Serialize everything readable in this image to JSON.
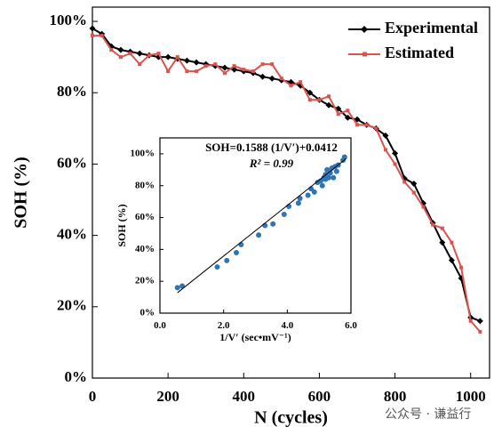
{
  "chart_data": [
    {
      "type": "line",
      "x_label": "N (cycles)",
      "y_label": "SOH (%)",
      "x": [
        0,
        25,
        50,
        75,
        100,
        125,
        150,
        175,
        200,
        225,
        250,
        275,
        300,
        325,
        350,
        375,
        400,
        425,
        450,
        475,
        500,
        525,
        550,
        575,
        600,
        625,
        650,
        675,
        700,
        725,
        750,
        775,
        800,
        825,
        850,
        875,
        900,
        925,
        950,
        975,
        1000,
        1025
      ],
      "series": [
        {
          "name": "Experimental",
          "color": "#000000",
          "marker": "diamond",
          "values": [
            98,
            96.5,
            93,
            92,
            91.5,
            91,
            90.5,
            90,
            90,
            89.5,
            89,
            88.5,
            88,
            87.5,
            87,
            86.5,
            86,
            85.5,
            84.5,
            84,
            83.5,
            83,
            82,
            80,
            78,
            76.5,
            75.5,
            73,
            72.5,
            71,
            70,
            68,
            63,
            56,
            54.5,
            49,
            43.5,
            38,
            33,
            28,
            17,
            16
          ]
        },
        {
          "name": "Estimated",
          "color": "#d9534f",
          "marker": "square",
          "values": [
            96,
            96,
            92,
            90,
            91,
            88,
            90.5,
            91,
            86,
            90,
            86,
            86,
            87.5,
            88,
            85.5,
            87.5,
            86.5,
            86,
            88,
            88,
            84,
            82,
            83,
            78,
            78,
            79,
            74,
            75,
            71,
            71,
            70,
            64,
            60,
            55,
            52,
            48,
            43,
            42,
            38,
            31,
            16,
            13
          ]
        }
      ],
      "xlim": [
        0,
        1050
      ],
      "xticks": [
        0,
        200,
        400,
        600,
        800,
        1000
      ],
      "ylim": [
        0,
        104
      ],
      "yticks": [
        {
          "value": 0,
          "label": "0%"
        },
        {
          "value": 20,
          "label": "20%"
        },
        {
          "value": 40,
          "label": "40%"
        },
        {
          "value": 60,
          "label": "60%"
        },
        {
          "value": 80,
          "label": "80%"
        },
        {
          "value": 100,
          "label": "100%"
        }
      ],
      "legend": "upper right",
      "watermark": "公众号 · 谦益行"
    },
    {
      "type": "scatter",
      "x_label": "1/V′ (sec•mV⁻¹)",
      "y_label": "SOH (%)",
      "annotations": [
        "SOH=0.1588 (1/V′)+0.0412",
        "R² = 0.99"
      ],
      "x": [
        0.55,
        0.7,
        1.8,
        2.1,
        2.4,
        2.55,
        3.1,
        3.3,
        3.55,
        3.9,
        4.05,
        4.35,
        4.4,
        4.65,
        4.75,
        4.85,
        4.95,
        5.05,
        5.1,
        5.15,
        5.2,
        5.2,
        5.25,
        5.3,
        5.35,
        5.4,
        5.45,
        5.5,
        5.55,
        5.6,
        5.75,
        5.8
      ],
      "values": [
        16,
        17,
        29,
        33,
        38,
        43,
        49,
        55,
        56,
        62,
        67,
        69,
        72,
        74,
        78,
        76,
        82,
        83,
        80,
        85,
        87,
        84,
        90,
        85,
        88,
        91,
        85,
        92,
        89,
        93,
        96,
        98
      ],
      "color": "#2e75b6",
      "fit_line": {
        "x": [
          0.55,
          5.85
        ],
        "values": [
          12.8,
          97
        ],
        "color": "#000000"
      },
      "xlim": [
        0,
        6
      ],
      "xticks": [
        {
          "value": 0,
          "label": "0.0"
        },
        {
          "value": 2,
          "label": "2.0"
        },
        {
          "value": 4,
          "label": "4.0"
        },
        {
          "value": 6,
          "label": "6.0"
        }
      ],
      "ylim": [
        0,
        110
      ],
      "yticks": [
        {
          "value": 0,
          "label": "0%"
        },
        {
          "value": 20,
          "label": "20%"
        },
        {
          "value": 40,
          "label": "40%"
        },
        {
          "value": 60,
          "label": "60%"
        },
        {
          "value": 80,
          "label": "80%"
        },
        {
          "value": 100,
          "label": "100%"
        }
      ]
    }
  ]
}
